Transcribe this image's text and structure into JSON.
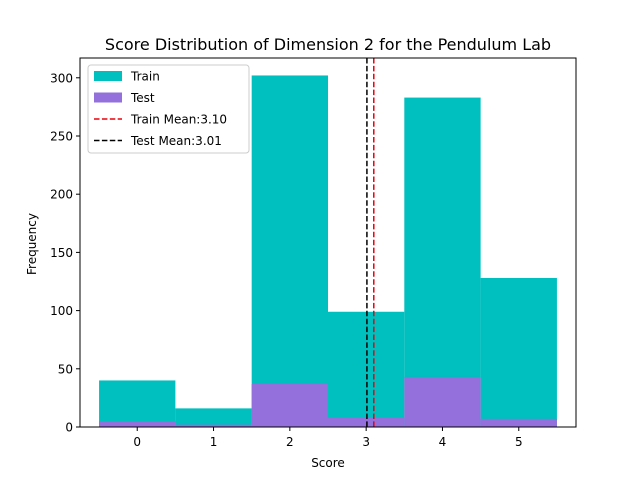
{
  "chart_data": {
    "type": "bar",
    "title": "Score Distribution of Dimension 2 for the Pendulum Lab",
    "xlabel": "Score",
    "ylabel": "Frequency",
    "categories": [
      0,
      1,
      2,
      3,
      4,
      5
    ],
    "xlim": [
      -0.75,
      5.75
    ],
    "ylim": [
      0,
      317
    ],
    "xticks": [
      0,
      1,
      2,
      3,
      4,
      5
    ],
    "yticks": [
      0,
      50,
      100,
      150,
      200,
      250,
      300
    ],
    "grid": false,
    "legend_position": "upper-left",
    "series": [
      {
        "name": "Train",
        "color": "#00bfbf",
        "values": [
          40,
          16,
          302,
          99,
          283,
          128
        ]
      },
      {
        "name": "Test",
        "color": "#9370db",
        "values": [
          5,
          2,
          37,
          8,
          43,
          7
        ]
      }
    ],
    "reference_lines": [
      {
        "name": "Train Mean:3.10",
        "x": 3.1,
        "color": "#e8000b",
        "style": "dashed"
      },
      {
        "name": "Test Mean:3.01",
        "x": 3.01,
        "color": "#000000",
        "style": "dashed"
      }
    ]
  }
}
